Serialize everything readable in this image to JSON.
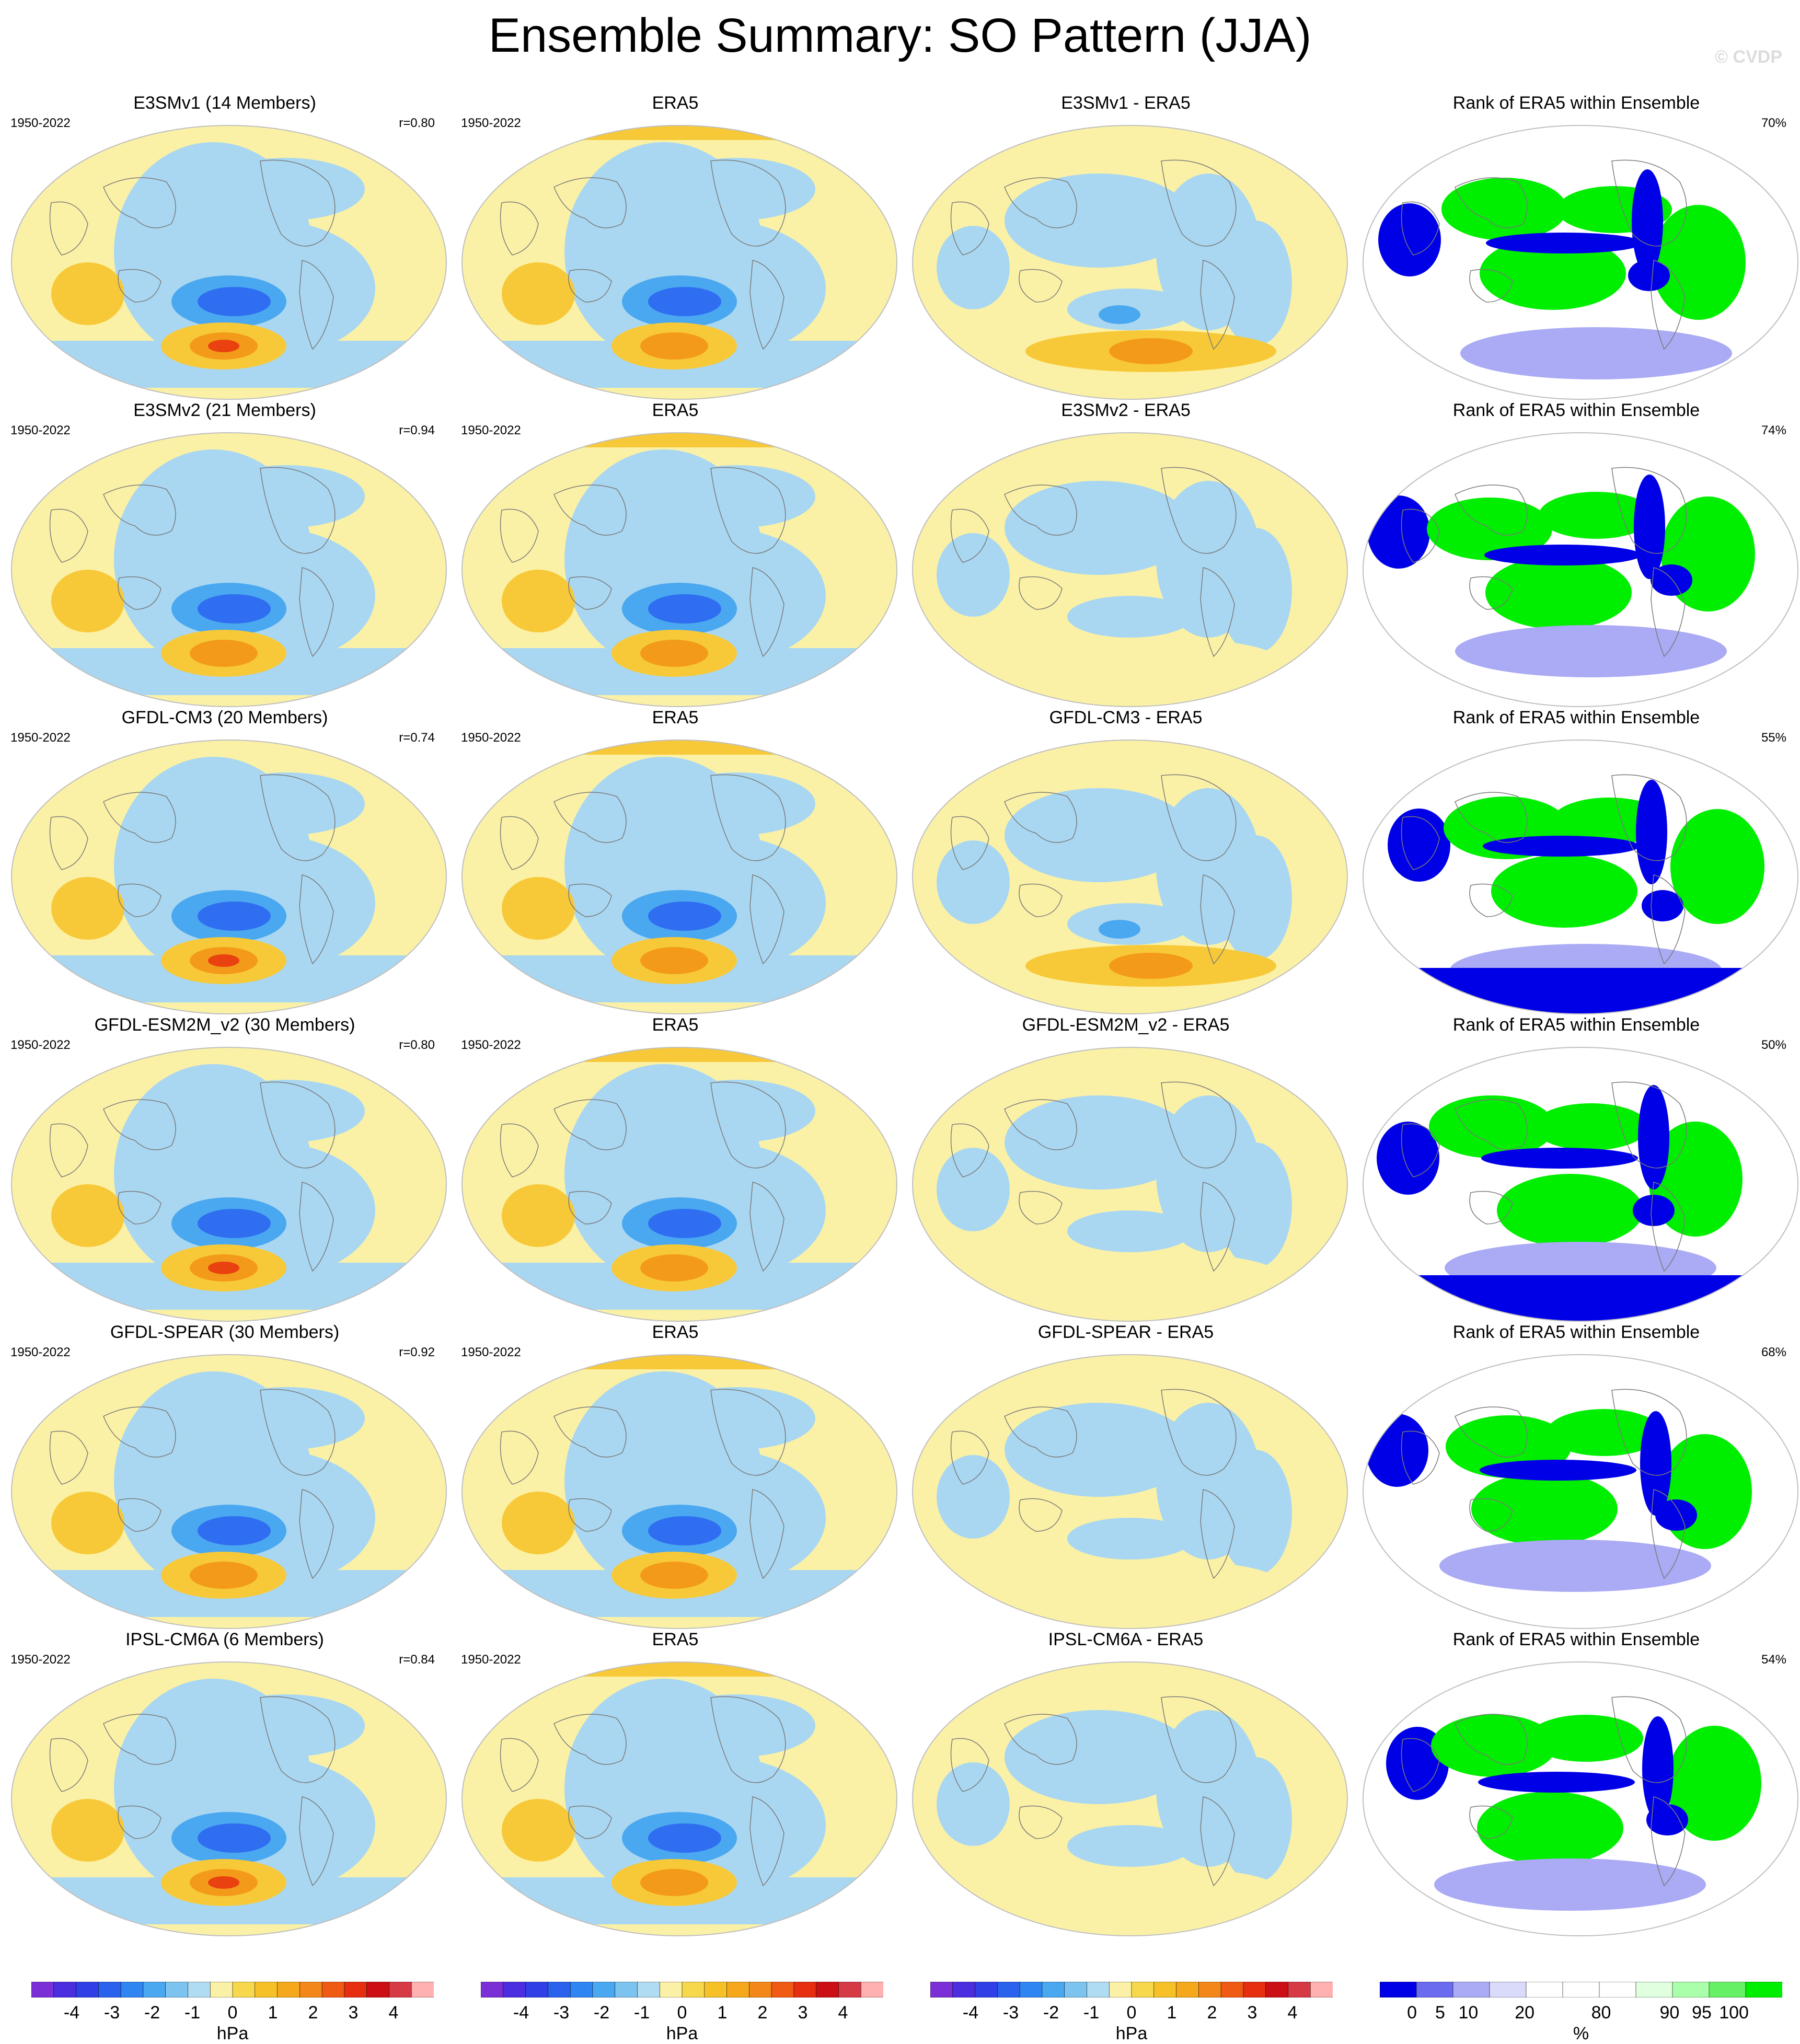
{
  "page": {
    "title": "Ensemble Summary: SO Pattern (JJA)",
    "watermark": "© CVDP"
  },
  "colors": {
    "neg4": "#7b2fd6",
    "neg3": "#3a36e0",
    "neg2": "#2f6ef0",
    "neg1": "#4aa8f0",
    "neg05": "#a9d7f1",
    "pos05": "#fbf1a6",
    "pos1": "#f7c938",
    "pos2": "#f39a1b",
    "pos3": "#e9410f",
    "pos4": "#c90f12",
    "rank_blue": "#0000e6",
    "rank_green": "#00ee00",
    "ocean_outline": "#9a9a9a"
  },
  "rows": [
    {
      "model": "E3SMv1 (14 Members)",
      "diff_title": "E3SMv1 - ERA5",
      "r": "r=0.80",
      "rank_pct": "70%"
    },
    {
      "model": "E3SMv2 (21 Members)",
      "diff_title": "E3SMv2 - ERA5",
      "r": "r=0.94",
      "rank_pct": "74%"
    },
    {
      "model": "GFDL-CM3 (20 Members)",
      "diff_title": "GFDL-CM3 - ERA5",
      "r": "r=0.74",
      "rank_pct": "55%"
    },
    {
      "model": "GFDL-ESM2M_v2 (30 Members)",
      "diff_title": "GFDL-ESM2M_v2 - ERA5",
      "r": "r=0.80",
      "rank_pct": "50%"
    },
    {
      "model": "GFDL-SPEAR (30 Members)",
      "diff_title": "GFDL-SPEAR - ERA5",
      "r": "r=0.92",
      "rank_pct": "68%"
    },
    {
      "model": "IPSL-CM6A (6 Members)",
      "diff_title": "IPSL-CM6A - ERA5",
      "r": "r=0.84",
      "rank_pct": "54%"
    }
  ],
  "common": {
    "period": "1950-2022",
    "obs_title": "ERA5",
    "rank_title": "Rank of ERA5 within Ensemble"
  },
  "colorbars": {
    "hpa": {
      "labels": [
        "-4",
        "-3",
        "-2",
        "-1",
        "0",
        "1",
        "2",
        "3",
        "4"
      ],
      "unit": "hPa",
      "colors": [
        "#7b2fd6",
        "#4b2ee0",
        "#3040e6",
        "#2a62ee",
        "#2f86f3",
        "#4aa8f0",
        "#7cc3ef",
        "#b0dcf3",
        "#fbf1a6",
        "#f7d84d",
        "#f5c127",
        "#f5a81b",
        "#f3871a",
        "#ef5a15",
        "#e52f10",
        "#cc0f14",
        "#d63a44",
        "#ffb0b0"
      ]
    },
    "rank": {
      "labels": [
        "0",
        "5",
        "10",
        "20",
        "80",
        "90",
        "95",
        "100"
      ],
      "unit": "%",
      "colors": [
        "#0000e6",
        "#6b6bf0",
        "#aaaaf5",
        "#dadafb",
        "#ffffff",
        "#ffffff",
        "#ffffff",
        "#dfffdf",
        "#aaffaa",
        "#66f066",
        "#00ee00"
      ]
    }
  }
}
